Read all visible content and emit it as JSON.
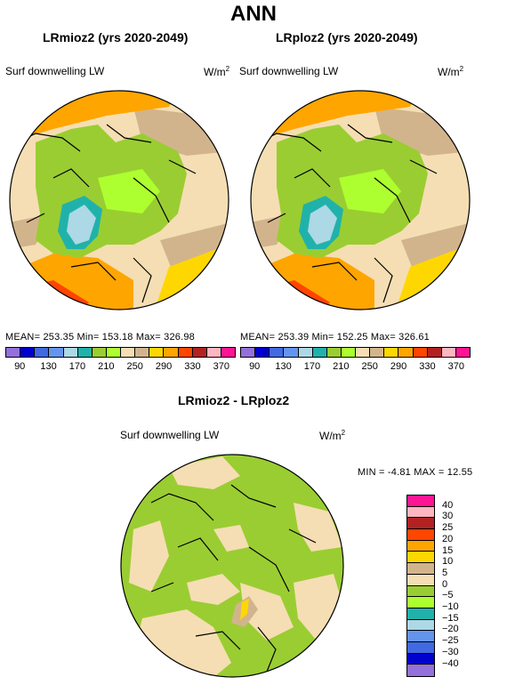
{
  "title": "ANN",
  "panels": [
    {
      "title": "LRmioz2 (yrs 2020-2049)",
      "variable": "Surf downwelling LW",
      "units": "W/m",
      "units_sup": "2",
      "stats": "MEAN= 253.35   Min= 153.18   Max= 326.98"
    },
    {
      "title": "LRploz2 (yrs 2020-2049)",
      "variable": "Surf downwelling LW",
      "units": "W/m",
      "units_sup": "2",
      "stats": "MEAN= 253.39   Min= 152.25   Max= 326.61"
    },
    {
      "title": "LRmioz2 - LRploz2",
      "variable": "Surf downwelling LW",
      "units": "W/m",
      "units_sup": "2",
      "stats": "MIN =   -4.81  MAX =   12.55"
    }
  ],
  "colorbar_top": {
    "tick_labels": [
      "90",
      "130",
      "170",
      "210",
      "250",
      "290",
      "330",
      "370"
    ],
    "colors": [
      "#9370db",
      "#0000cd",
      "#4169e1",
      "#6495ed",
      "#add8e6",
      "#20b2aa",
      "#9acd32",
      "#adff2f",
      "#f5deb3",
      "#d2b48c",
      "#ffd700",
      "#ffa500",
      "#ff4500",
      "#b22222",
      "#ffb6c1",
      "#ff1493"
    ]
  },
  "colorbar_diff": {
    "tick_labels": [
      "40",
      "30",
      "25",
      "20",
      "15",
      "10",
      "5",
      "0",
      "−5",
      "−10",
      "−15",
      "−20",
      "−25",
      "−30",
      "−40"
    ],
    "colors": [
      "#ff1493",
      "#ffb6c1",
      "#b22222",
      "#ff4500",
      "#ffa500",
      "#ffd700",
      "#d2b48c",
      "#f5deb3",
      "#9acd32",
      "#adff2f",
      "#20b2aa",
      "#add8e6",
      "#6495ed",
      "#4169e1",
      "#0000cd",
      "#9370db"
    ]
  }
}
